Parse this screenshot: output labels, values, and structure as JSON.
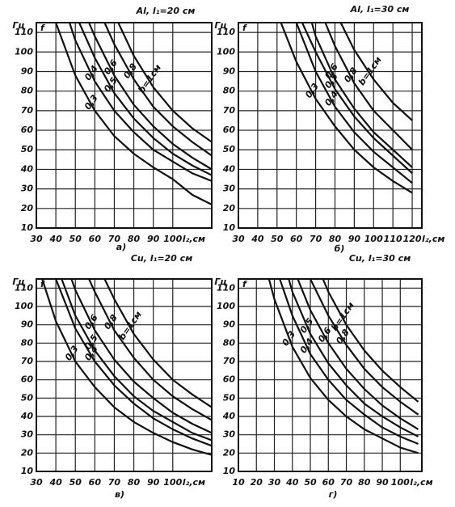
{
  "chart_data": [
    {
      "type": "line",
      "title": "Al, l₁=20 см",
      "panel_label": "а)",
      "y_unit": "Гц",
      "y_label": "f",
      "x_label": "l₂,см",
      "xlim": [
        30,
        120
      ],
      "ylim": [
        10,
        115
      ],
      "xticks": [
        30,
        40,
        50,
        60,
        70,
        80,
        90,
        100
      ],
      "yticks": [
        10,
        20,
        30,
        40,
        50,
        60,
        70,
        80,
        90,
        100,
        110
      ],
      "grid": true,
      "color": "#111",
      "series": [
        {
          "name": "b=1см",
          "x": [
            72,
            80,
            90,
            100,
            110,
            120
          ],
          "values": [
            115,
            98,
            82,
            70,
            61,
            54
          ]
        },
        {
          "name": "0,8",
          "x": [
            65,
            70,
            80,
            90,
            100,
            110,
            120
          ],
          "values": [
            115,
            104,
            86,
            72,
            62,
            54,
            47
          ]
        },
        {
          "name": "0,6",
          "x": [
            57,
            60,
            70,
            80,
            90,
            100,
            110,
            120
          ],
          "values": [
            115,
            108,
            88,
            73,
            62,
            53,
            46,
            40
          ]
        },
        {
          "name": "0,5",
          "x": [
            52,
            60,
            70,
            80,
            90,
            100,
            110,
            120
          ],
          "values": [
            115,
            97,
            79,
            66,
            56,
            48,
            42,
            37
          ]
        },
        {
          "name": "0,4",
          "x": [
            47,
            50,
            60,
            70,
            80,
            90,
            100,
            110,
            120
          ],
          "values": [
            115,
            106,
            85,
            70,
            59,
            50,
            44,
            38,
            34
          ]
        },
        {
          "name": "0,3",
          "x": [
            40,
            50,
            60,
            70,
            80,
            90,
            100,
            110,
            120
          ],
          "values": [
            115,
            88,
            70,
            57,
            48,
            41,
            35,
            27,
            22
          ]
        }
      ]
    },
    {
      "type": "line",
      "title": "Al, l₁=30 см",
      "panel_label": "б)",
      "y_unit": "Гц",
      "y_label": "f",
      "x_label": "l₂,см",
      "xlim": [
        30,
        125
      ],
      "ylim": [
        10,
        115
      ],
      "xticks": [
        30,
        40,
        50,
        60,
        70,
        80,
        90,
        100,
        110,
        120
      ],
      "yticks": [
        10,
        20,
        30,
        40,
        50,
        60,
        70,
        80,
        90,
        100,
        110
      ],
      "grid": true,
      "color": "#111",
      "series": [
        {
          "name": "b=1см",
          "x": [
            83,
            90,
            100,
            110,
            120
          ],
          "values": [
            115,
            101,
            86,
            74,
            65
          ]
        },
        {
          "name": "0,8",
          "x": [
            75,
            80,
            90,
            100,
            110,
            120
          ],
          "values": [
            115,
            103,
            84,
            70,
            60,
            50
          ]
        },
        {
          "name": "0,6",
          "x": [
            68,
            70,
            80,
            90,
            100,
            110,
            120
          ],
          "values": [
            115,
            108,
            86,
            71,
            59,
            50,
            41
          ]
        },
        {
          "name": "0,5",
          "x": [
            63,
            70,
            80,
            90,
            100,
            110,
            120
          ],
          "values": [
            115,
            100,
            81,
            67,
            56,
            47,
            38
          ]
        },
        {
          "name": "0,4",
          "x": [
            60,
            70,
            80,
            90,
            100,
            110,
            120
          ],
          "values": [
            115,
            90,
            72,
            59,
            49,
            41,
            33
          ]
        },
        {
          "name": "0,3",
          "x": [
            52,
            60,
            70,
            80,
            90,
            100,
            110,
            120
          ],
          "values": [
            115,
            95,
            76,
            62,
            50,
            41,
            34,
            28
          ]
        }
      ]
    },
    {
      "type": "line",
      "title": "Cu, l₁=20 см",
      "panel_label": "в)",
      "y_unit": "Гц",
      "y_label": "f",
      "x_label": "l₂,см",
      "xlim": [
        30,
        120
      ],
      "ylim": [
        10,
        115
      ],
      "xticks": [
        30,
        40,
        50,
        60,
        70,
        80,
        90,
        100
      ],
      "yticks": [
        10,
        20,
        30,
        40,
        50,
        60,
        70,
        80,
        90,
        100,
        110
      ],
      "grid": true,
      "color": "#111",
      "series": [
        {
          "name": "b=1см",
          "x": [
            65,
            70,
            80,
            90,
            100,
            110,
            120
          ],
          "values": [
            115,
            104,
            85,
            71,
            60,
            52,
            45
          ]
        },
        {
          "name": "0,8",
          "x": [
            57,
            60,
            70,
            80,
            90,
            100,
            110,
            120
          ],
          "values": [
            115,
            108,
            87,
            72,
            60,
            51,
            44,
            38
          ]
        },
        {
          "name": "0,6",
          "x": [
            48,
            50,
            60,
            70,
            80,
            90,
            100,
            110,
            120
          ],
          "values": [
            115,
            109,
            87,
            71,
            59,
            50,
            42,
            36,
            31
          ]
        },
        {
          "name": "0,5",
          "x": [
            43,
            50,
            60,
            70,
            80,
            90,
            100,
            110,
            120
          ],
          "values": [
            115,
            95,
            76,
            62,
            51,
            43,
            37,
            31,
            27
          ]
        },
        {
          "name": "0,4",
          "x": [
            40,
            50,
            60,
            70,
            80,
            90,
            100,
            110,
            120
          ],
          "values": [
            115,
            88,
            70,
            57,
            47,
            39,
            33,
            28,
            24
          ]
        },
        {
          "name": "0,3",
          "x": [
            33,
            40,
            50,
            60,
            70,
            80,
            90,
            100,
            110,
            120
          ],
          "values": [
            115,
            92,
            70,
            56,
            45,
            37,
            31,
            26,
            22,
            19
          ]
        }
      ]
    },
    {
      "type": "line",
      "title": "Cu, l₁=30 см",
      "panel_label": "г)",
      "y_unit": "Гц",
      "y_label": "f",
      "x_label": "l₂,см",
      "xlim": [
        10,
        112
      ],
      "ylim": [
        10,
        115
      ],
      "xticks": [
        10,
        20,
        30,
        40,
        50,
        60,
        70,
        80,
        90,
        100
      ],
      "yticks": [
        10,
        20,
        30,
        40,
        50,
        60,
        70,
        80,
        90,
        100,
        110
      ],
      "grid": true,
      "color": "#111",
      "series": [
        {
          "name": "b=1см",
          "x": [
            57,
            60,
            70,
            80,
            90,
            100,
            110
          ],
          "values": [
            115,
            108,
            90,
            76,
            65,
            56,
            48
          ]
        },
        {
          "name": "0,8",
          "x": [
            50,
            60,
            70,
            80,
            90,
            100,
            110
          ],
          "values": [
            115,
            95,
            79,
            66,
            56,
            48,
            41
          ]
        },
        {
          "name": "0,6",
          "x": [
            43,
            50,
            60,
            70,
            80,
            90,
            100,
            110
          ],
          "values": [
            115,
            98,
            80,
            66,
            55,
            46,
            39,
            33
          ]
        },
        {
          "name": "0,5",
          "x": [
            38,
            40,
            50,
            60,
            70,
            80,
            90,
            100,
            110
          ],
          "values": [
            115,
            108,
            85,
            69,
            57,
            47,
            40,
            34,
            29
          ]
        },
        {
          "name": "0,4",
          "x": [
            33,
            40,
            50,
            60,
            70,
            80,
            90,
            100,
            110
          ],
          "values": [
            115,
            95,
            74,
            60,
            49,
            41,
            34,
            29,
            25
          ]
        },
        {
          "name": "0,3",
          "x": [
            27,
            30,
            40,
            50,
            60,
            70,
            80,
            90,
            100,
            110
          ],
          "values": [
            115,
            104,
            78,
            61,
            49,
            40,
            33,
            28,
            23,
            20
          ]
        }
      ]
    }
  ]
}
